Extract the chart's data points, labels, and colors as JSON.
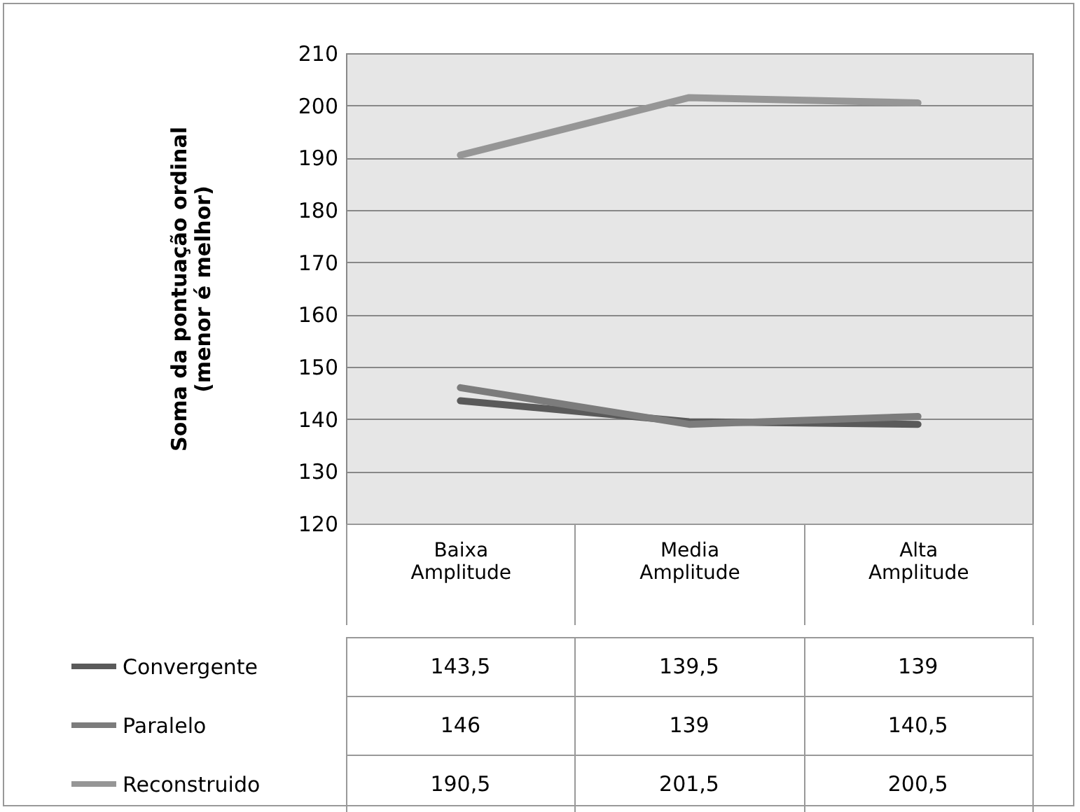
{
  "chart_data": {
    "type": "line",
    "ylabel": "Soma da pontuação ordinal (menor é melhor)",
    "categories": [
      "Baixa Amplitude",
      "Media Amplitude",
      "Alta Amplitude"
    ],
    "series": [
      {
        "name": "Convergente",
        "color": "#5a5a5a",
        "values": [
          143.5,
          139.5,
          139
        ],
        "value_labels": [
          "143,5",
          "139,5",
          "139"
        ]
      },
      {
        "name": "Paralelo",
        "color": "#7c7c7c",
        "values": [
          146,
          139,
          140.5
        ],
        "value_labels": [
          "146",
          "139",
          "140,5"
        ]
      },
      {
        "name": "Reconstruido",
        "color": "#969696",
        "values": [
          190.5,
          201.5,
          200.5
        ],
        "value_labels": [
          "190,5",
          "201,5",
          "200,5"
        ]
      }
    ],
    "ylim": [
      120,
      210
    ],
    "yticks": [
      120,
      130,
      140,
      150,
      160,
      170,
      180,
      190,
      200,
      210
    ],
    "grid": "y",
    "legend": "bottom"
  }
}
